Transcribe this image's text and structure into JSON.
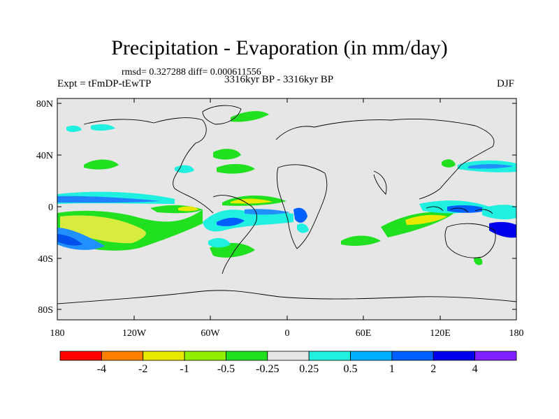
{
  "title": "Precipitation - Evaporation (in mm/day)",
  "stats": "rmsd= 0.327288 diff= 0.000611556",
  "experiment": "Expt = tFmDP-tEwTP",
  "period": "3316kyr BP - 3316kyr BP",
  "season": "DJF",
  "y_ticks": [
    "80N",
    "40N",
    "0",
    "40S",
    "80S"
  ],
  "x_ticks": [
    "180",
    "120W",
    "60W",
    "0",
    "60E",
    "120E",
    "180"
  ],
  "colorbar": {
    "colors": [
      "#ff0000",
      "#ff8000",
      "#e8e800",
      "#90f000",
      "#20e020",
      "#e6e6e6",
      "#20f0e0",
      "#00b0ff",
      "#0060ff",
      "#0000ee",
      "#8020ff"
    ],
    "labels": [
      "-4",
      "-2",
      "-1",
      "-0.5",
      "-0.25",
      "0.25",
      "0.5",
      "1",
      "2",
      "4"
    ]
  }
}
